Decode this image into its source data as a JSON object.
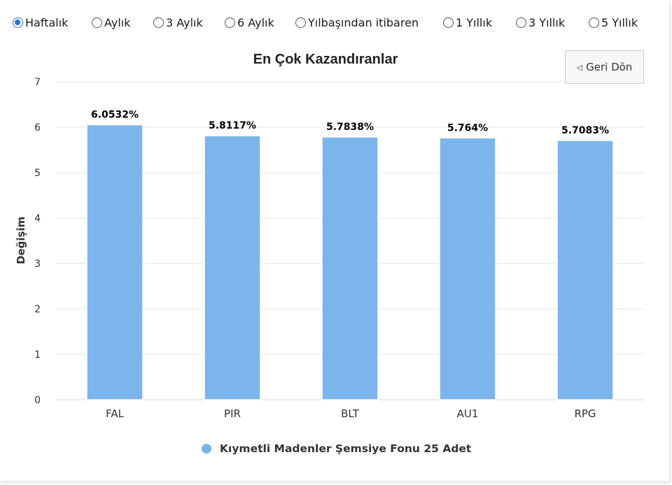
{
  "period_options": [
    {
      "label": "Haftalık",
      "selected": true
    },
    {
      "label": "Aylık",
      "selected": false
    },
    {
      "label": "3 Aylık",
      "selected": false
    },
    {
      "label": "6 Aylık",
      "selected": false
    },
    {
      "label": "Yılbaşından itibaren",
      "selected": false
    },
    {
      "label": "1 Yıllık",
      "selected": false
    },
    {
      "label": "3 Yıllık",
      "selected": false
    },
    {
      "label": "5 Yıllık",
      "selected": false
    }
  ],
  "back_button": {
    "label": "Geri Dön",
    "icon": "back-triangle-icon"
  },
  "colors": {
    "bar": "#7cb5ec",
    "radio_selected": "#1a73e8",
    "grid": "#e6e6e6",
    "axis_line": "#ccd6eb"
  },
  "chart_data": {
    "type": "bar",
    "title": "En Çok Kazandıranlar",
    "xlabel": "",
    "ylabel": "Değişim",
    "ylim": [
      0,
      7
    ],
    "yticks": [
      0,
      1,
      2,
      3,
      4,
      5,
      6,
      7
    ],
    "categories": [
      "FAL",
      "PIR",
      "BLT",
      "AU1",
      "RPG"
    ],
    "series": [
      {
        "name": "Kıymetli Madenler Şemsiye Fonu 25 Adet",
        "values": [
          6.0532,
          5.8117,
          5.7838,
          5.764,
          5.7083
        ],
        "data_labels": [
          "6.0532%",
          "5.8117%",
          "5.7838%",
          "5.764%",
          "5.7083%"
        ]
      }
    ],
    "grid": true,
    "legend": "bottom-center"
  }
}
